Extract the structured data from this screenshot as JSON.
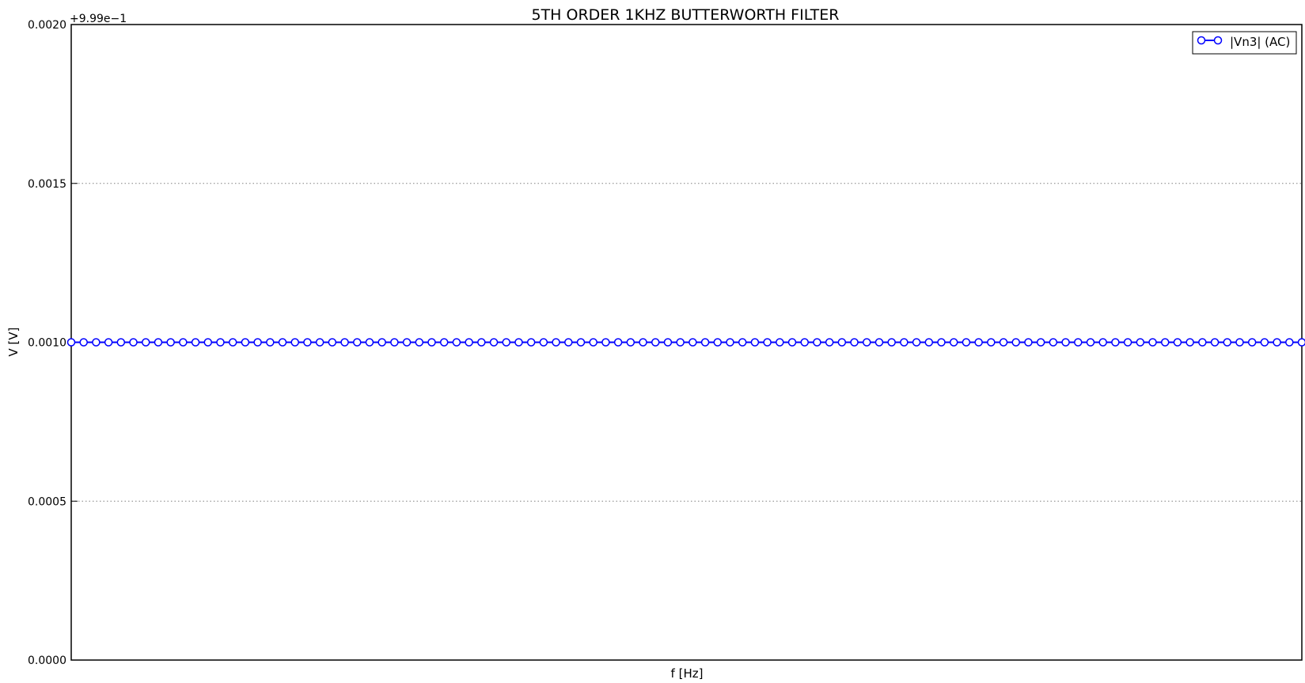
{
  "chart_data": {
    "type": "line",
    "title": "5TH ORDER 1KHZ BUTTERWORTH FILTER",
    "xlabel": "f [Hz]",
    "ylabel": "V [V]",
    "offset_label": "+9.99e−1",
    "y_offset": 0.999,
    "ylim": [
      0.0,
      0.002
    ],
    "y_ticks": [
      0.0,
      0.0005,
      0.001,
      0.0015,
      0.002
    ],
    "y_tick_labels": [
      "0.0000",
      "0.0005",
      "0.0010",
      "0.0015",
      "0.0020"
    ],
    "x_ticks_shown": false,
    "grid": "horizontal-dotted",
    "legend_position": "top-right",
    "series": [
      {
        "name": "|Vn3| (AC)",
        "color": "#0000ff",
        "marker": "circle-open",
        "point_count": 100,
        "value": 0.001
      }
    ]
  }
}
